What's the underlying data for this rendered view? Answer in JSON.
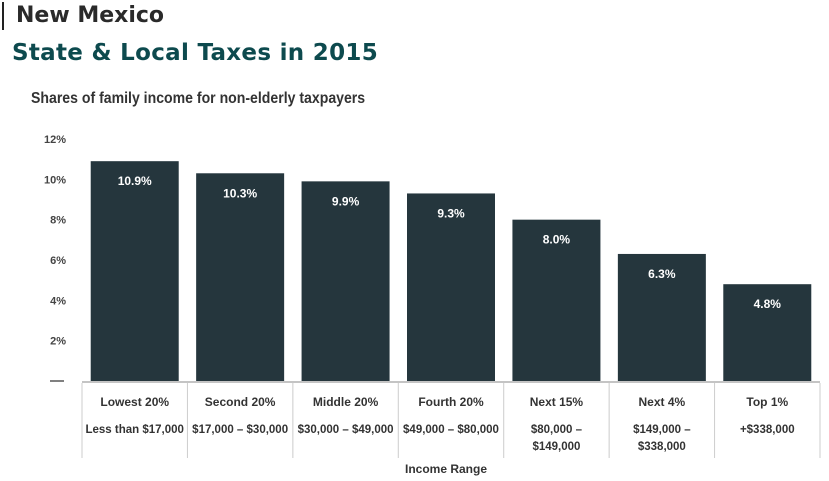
{
  "header": {
    "state": "New Mexico",
    "subtitle": "State & Local Taxes in 2015"
  },
  "colors": {
    "bar": "#25363d",
    "bar_label": "#ffffff",
    "subtitle": "#0d4a4e",
    "axis": "#555555",
    "table_lines": "#cccccc"
  },
  "chart_data": {
    "type": "bar",
    "title": "Shares of family income for non-elderly taxpayers",
    "xlabel": "Income Range",
    "ylabel": "",
    "ylim": [
      0,
      12
    ],
    "yticks": [
      2,
      4,
      6,
      8,
      10,
      12
    ],
    "ytick_labels": [
      "2%",
      "4%",
      "6%",
      "8%",
      "10%",
      "12%"
    ],
    "categories": [
      "Lowest 20%",
      "Second 20%",
      "Middle 20%",
      "Fourth 20%",
      "Next 15%",
      "Next 4%",
      "Top 1%"
    ],
    "income_ranges": [
      [
        "Less than $17,000"
      ],
      [
        "$17,000 – $30,000"
      ],
      [
        "$30,000 – $49,000"
      ],
      [
        "$49,000 – $80,000"
      ],
      [
        "$80,000 –",
        "$149,000"
      ],
      [
        "$149,000 –",
        "$338,000"
      ],
      [
        "+$338,000"
      ]
    ],
    "values": [
      10.9,
      10.3,
      9.9,
      9.3,
      8.0,
      6.3,
      4.8
    ],
    "value_labels": [
      "10.9%",
      "10.3%",
      "9.9%",
      "9.3%",
      "8.0%",
      "6.3%",
      "4.8%"
    ],
    "grid": false
  }
}
